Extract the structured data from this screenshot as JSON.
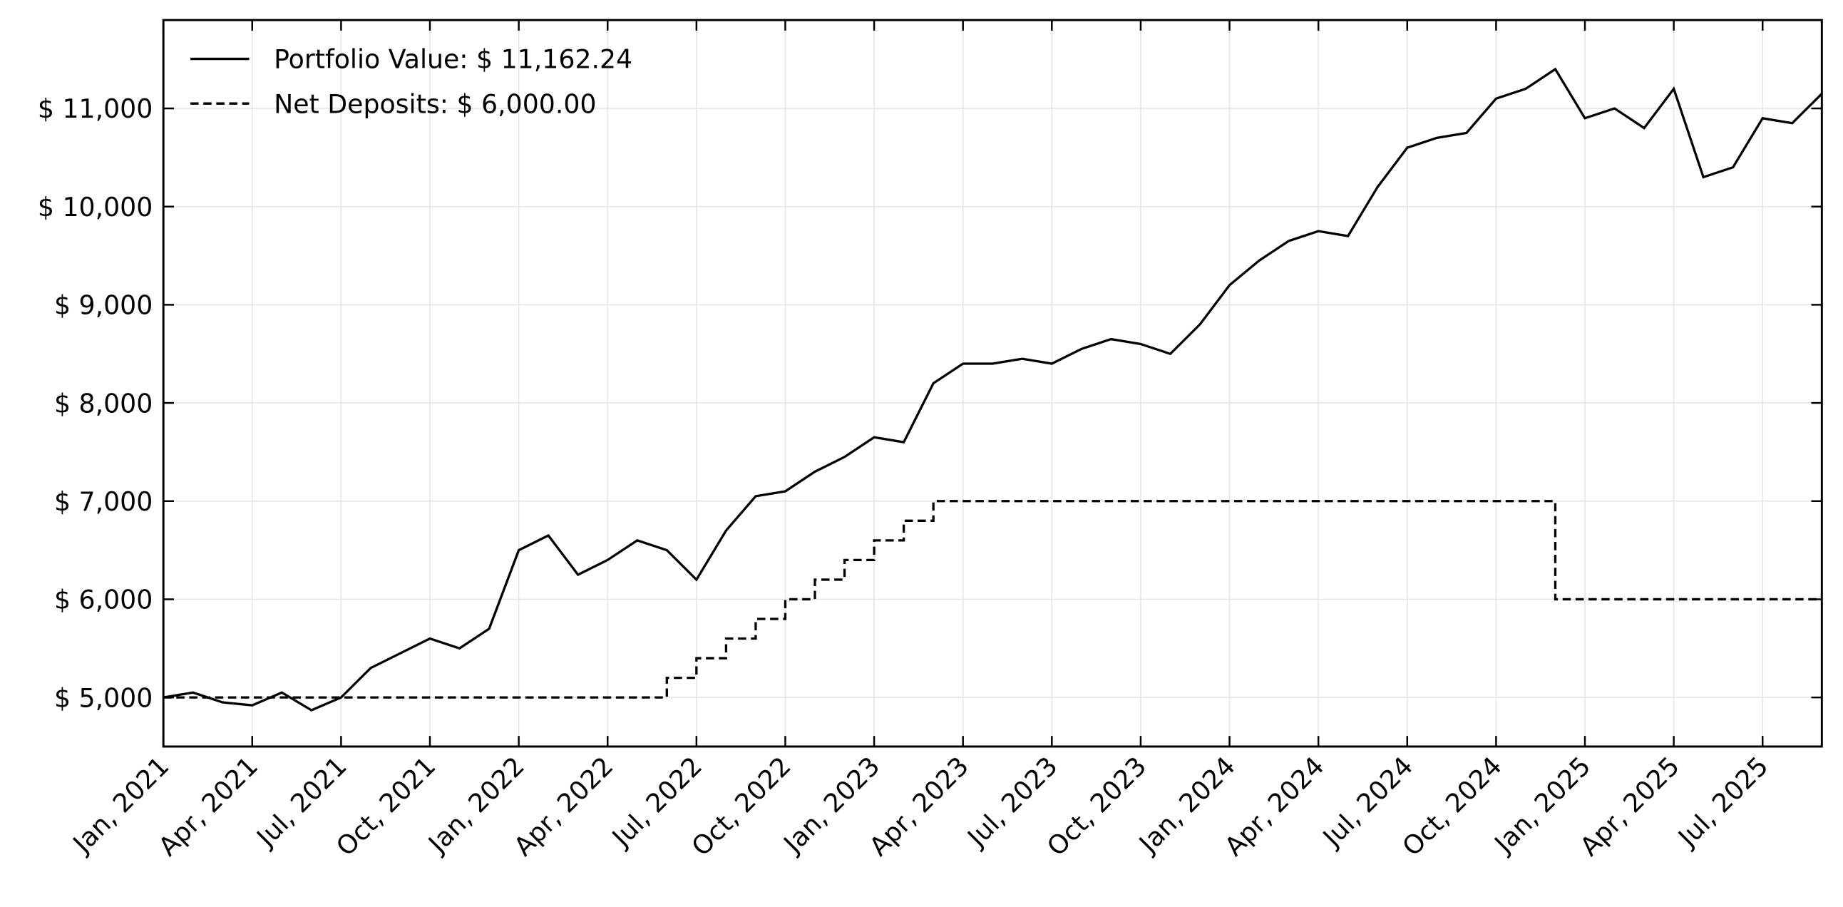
{
  "chart_data": {
    "type": "line",
    "grid": true,
    "legend": "upper left",
    "xlim": [
      "2021-01",
      "2025-09"
    ],
    "ylim": [
      4500,
      11900
    ],
    "xticks": [
      {
        "value": "2021-01",
        "label": "Jan, 2021"
      },
      {
        "value": "2021-04",
        "label": "Apr, 2021"
      },
      {
        "value": "2021-07",
        "label": "Jul, 2021"
      },
      {
        "value": "2021-10",
        "label": "Oct, 2021"
      },
      {
        "value": "2022-01",
        "label": "Jan, 2022"
      },
      {
        "value": "2022-04",
        "label": "Apr, 2022"
      },
      {
        "value": "2022-07",
        "label": "Jul, 2022"
      },
      {
        "value": "2022-10",
        "label": "Oct, 2022"
      },
      {
        "value": "2023-01",
        "label": "Jan, 2023"
      },
      {
        "value": "2023-04",
        "label": "Apr, 2023"
      },
      {
        "value": "2023-07",
        "label": "Jul, 2023"
      },
      {
        "value": "2023-10",
        "label": "Oct, 2023"
      },
      {
        "value": "2024-01",
        "label": "Jan, 2024"
      },
      {
        "value": "2024-04",
        "label": "Apr, 2024"
      },
      {
        "value": "2024-07",
        "label": "Jul, 2024"
      },
      {
        "value": "2024-10",
        "label": "Oct, 2024"
      },
      {
        "value": "2025-01",
        "label": "Jan, 2025"
      },
      {
        "value": "2025-04",
        "label": "Apr, 2025"
      },
      {
        "value": "2025-07",
        "label": "Jul, 2025"
      }
    ],
    "yticks": [
      {
        "value": 5000,
        "label": "$ 5,000"
      },
      {
        "value": 6000,
        "label": "$ 6,000"
      },
      {
        "value": 7000,
        "label": "$ 7,000"
      },
      {
        "value": 8000,
        "label": "$ 8,000"
      },
      {
        "value": 9000,
        "label": "$ 9,000"
      },
      {
        "value": 10000,
        "label": "$ 10,000"
      },
      {
        "value": 11000,
        "label": "$ 11,000"
      }
    ],
    "series": [
      {
        "name": "Portfolio Value: $ 11,162.24",
        "color": "#000000",
        "dash": "solid",
        "x": [
          "2021-01",
          "2021-02",
          "2021-03",
          "2021-04",
          "2021-05",
          "2021-06",
          "2021-07",
          "2021-08",
          "2021-09",
          "2021-10",
          "2021-11",
          "2021-12",
          "2022-01",
          "2022-02",
          "2022-03",
          "2022-04",
          "2022-05",
          "2022-06",
          "2022-07",
          "2022-08",
          "2022-09",
          "2022-10",
          "2022-11",
          "2022-12",
          "2023-01",
          "2023-02",
          "2023-03",
          "2023-04",
          "2023-05",
          "2023-06",
          "2023-07",
          "2023-08",
          "2023-09",
          "2023-10",
          "2023-11",
          "2023-12",
          "2024-01",
          "2024-02",
          "2024-03",
          "2024-04",
          "2024-05",
          "2024-06",
          "2024-07",
          "2024-08",
          "2024-09",
          "2024-10",
          "2024-11",
          "2024-12",
          "2025-01",
          "2025-02",
          "2025-03",
          "2025-04",
          "2025-05",
          "2025-06",
          "2025-07",
          "2025-08",
          "2025-09"
        ],
        "values": [
          5000,
          5050,
          4950,
          4920,
          5050,
          4870,
          5000,
          5300,
          5450,
          5600,
          5500,
          5700,
          6500,
          6650,
          6250,
          6400,
          6600,
          6500,
          6200,
          6700,
          7050,
          7100,
          7300,
          7450,
          7650,
          7600,
          8200,
          8400,
          8400,
          8450,
          8400,
          8550,
          8650,
          8600,
          8500,
          8800,
          9200,
          9450,
          9650,
          9750,
          9700,
          10200,
          10600,
          10700,
          10750,
          11100,
          11200,
          11400,
          10900,
          11000,
          10800,
          11200,
          10300,
          10400,
          10900,
          10850,
          11150
        ]
      },
      {
        "name": "Net Deposits: $ 6,000.00",
        "color": "#000000",
        "dash": "dashed",
        "step": "post",
        "x": [
          "2021-01",
          "2022-06",
          "2022-07",
          "2022-08",
          "2022-09",
          "2022-10",
          "2022-11",
          "2022-12",
          "2023-01",
          "2023-02",
          "2023-03",
          "2024-12",
          "2025-09"
        ],
        "values": [
          5000,
          5200,
          5400,
          5600,
          5800,
          6000,
          6200,
          6400,
          6600,
          6800,
          7000,
          6000,
          6000
        ]
      }
    ]
  }
}
